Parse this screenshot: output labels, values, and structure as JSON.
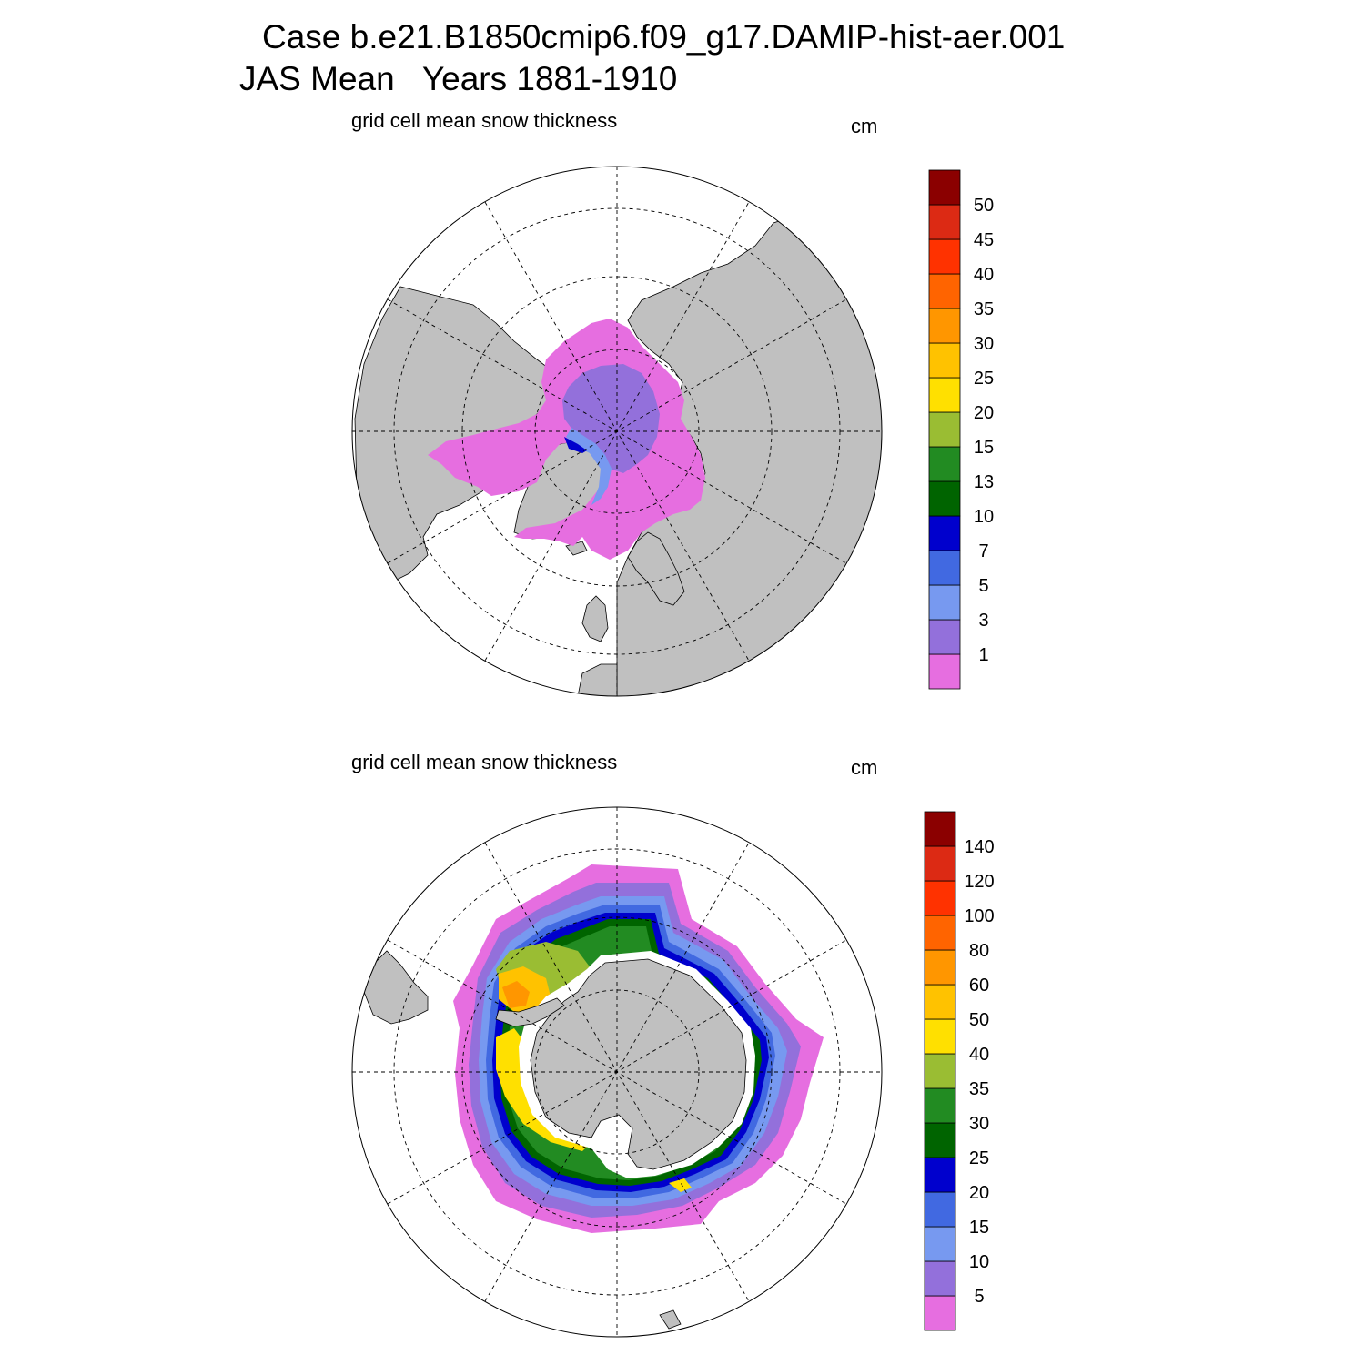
{
  "header": {
    "line1": "Case b.e21.B1850cmip6.f09_g17.DAMIP-hist-aer.001",
    "line2": "JAS Mean   Years 1881-1910"
  },
  "panels": [
    {
      "hemisphere": "north",
      "title": "grid cell mean snow thickness",
      "units": "cm",
      "colorbar": {
        "labels": [
          "1",
          "3",
          "5",
          "7",
          "10",
          "13",
          "15",
          "20",
          "25",
          "30",
          "35",
          "40",
          "45",
          "50"
        ],
        "colors": [
          "#e66ee0",
          "#9370db",
          "#7799f0",
          "#4169e1",
          "#0000cd",
          "#006400",
          "#228b22",
          "#9abd33",
          "#ffe000",
          "#ffc200",
          "#ff9600",
          "#ff6400",
          "#ff3200",
          "#dc2a14",
          "#8b0000"
        ]
      }
    },
    {
      "hemisphere": "south",
      "title": "grid cell mean snow thickness",
      "units": "cm",
      "colorbar": {
        "labels": [
          "5",
          "10",
          "15",
          "20",
          "25",
          "30",
          "35",
          "40",
          "50",
          "60",
          "80",
          "100",
          "120",
          "140"
        ],
        "colors": [
          "#e66ee0",
          "#9370db",
          "#7799f0",
          "#4169e1",
          "#0000cd",
          "#006400",
          "#228b22",
          "#9abd33",
          "#ffe000",
          "#ffc200",
          "#ff9600",
          "#ff6400",
          "#ff3200",
          "#dc2a14",
          "#8b0000"
        ]
      }
    }
  ],
  "colors": {
    "land": "#c0c0c0",
    "ocean": "#ffffff",
    "grid": "#000000"
  }
}
